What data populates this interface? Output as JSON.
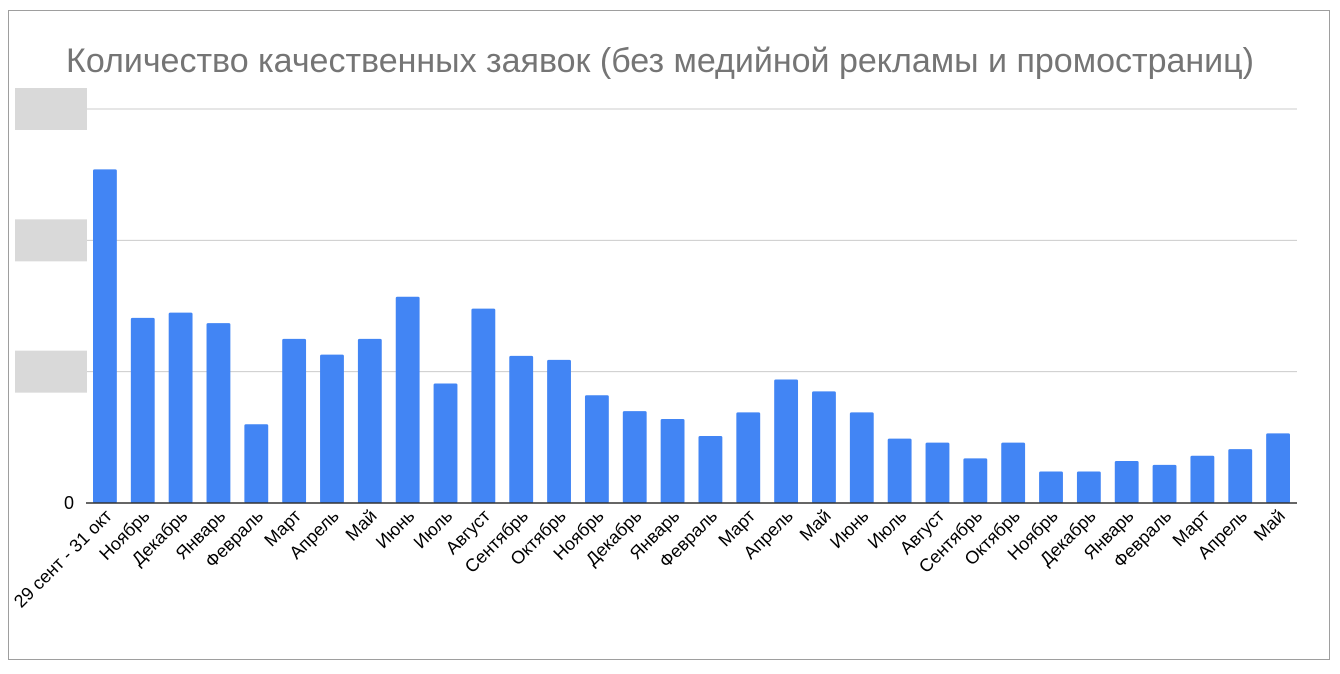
{
  "chart_data": {
    "type": "bar",
    "title": "Количество качественных заявок (без медийной рекламы и промостраниц)",
    "xlabel": "",
    "ylabel": "",
    "ylim": [
      0,
      3
    ],
    "y_tick_labels": [
      "0",
      "",
      "",
      ""
    ],
    "grid": true,
    "color": "#4285f4",
    "categories": [
      "29 сент - 31 окт",
      "Ноябрь",
      "Декабрь",
      "Январь",
      "Февраль",
      "Март",
      "Апрель",
      "Май",
      "Июнь",
      "Июль",
      "Август",
      "Сентябрь",
      "Октябрь",
      "Ноябрь",
      "Декабрь",
      "Январь",
      "Февраль",
      "Март",
      "Апрель",
      "Май",
      "Июнь",
      "Июль",
      "Август",
      "Сентябрь",
      "Октябрь",
      "Ноябрь",
      "Декабрь",
      "Январь",
      "Февраль",
      "Март",
      "Апрель",
      "Май"
    ],
    "values": [
      2.54,
      1.41,
      1.45,
      1.37,
      0.6,
      1.25,
      1.13,
      1.25,
      1.57,
      0.91,
      1.48,
      1.12,
      1.09,
      0.82,
      0.7,
      0.64,
      0.51,
      0.69,
      0.94,
      0.85,
      0.69,
      0.49,
      0.46,
      0.34,
      0.46,
      0.24,
      0.24,
      0.32,
      0.29,
      0.36,
      0.41,
      0.53
    ]
  }
}
